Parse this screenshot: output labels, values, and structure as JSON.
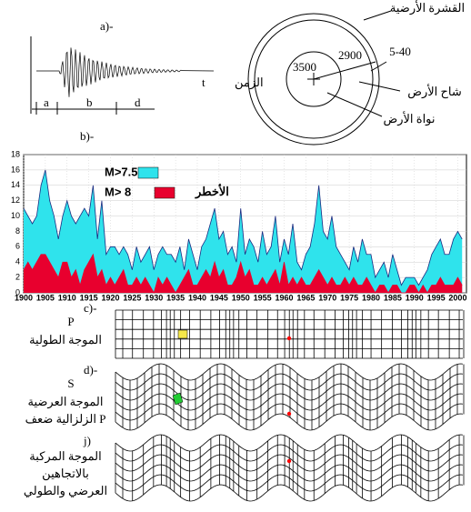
{
  "panel_a": {
    "label": "a)-",
    "time_label": "الزمن",
    "time_symbol": "t",
    "phases": [
      "a",
      "b",
      "d"
    ],
    "earth": {
      "crust": "القشرة الأرضية",
      "mantle": "شاح الأرض",
      "core": "نواة الأرض",
      "depths": [
        "3500",
        "2900",
        "5-40"
      ]
    }
  },
  "chart_data": {
    "type": "area",
    "panel_label": "b)-",
    "x": [
      1900,
      1901,
      1902,
      1903,
      1904,
      1905,
      1906,
      1907,
      1908,
      1909,
      1910,
      1911,
      1912,
      1913,
      1914,
      1915,
      1916,
      1917,
      1918,
      1919,
      1920,
      1921,
      1922,
      1923,
      1924,
      1925,
      1926,
      1927,
      1928,
      1929,
      1930,
      1931,
      1932,
      1933,
      1934,
      1935,
      1936,
      1937,
      1938,
      1939,
      1940,
      1941,
      1942,
      1943,
      1944,
      1945,
      1946,
      1947,
      1948,
      1949,
      1950,
      1951,
      1952,
      1953,
      1954,
      1955,
      1956,
      1957,
      1958,
      1959,
      1960,
      1961,
      1962,
      1963,
      1964,
      1965,
      1966,
      1967,
      1968,
      1969,
      1970,
      1971,
      1972,
      1973,
      1974,
      1975,
      1976,
      1977,
      1978,
      1979,
      1980,
      1981,
      1982,
      1983,
      1984,
      1985,
      1986,
      1987,
      1988,
      1989,
      1990,
      1991,
      1992,
      1993,
      1994,
      1995,
      1996,
      1997,
      1998,
      1999,
      2000,
      2001
    ],
    "xlim": [
      1900,
      2002
    ],
    "xticks": [
      1900,
      1905,
      1910,
      1915,
      1920,
      1925,
      1930,
      1935,
      1940,
      1945,
      1950,
      1955,
      1960,
      1965,
      1970,
      1975,
      1980,
      1985,
      1990,
      1995,
      2000
    ],
    "ylim": [
      0,
      18
    ],
    "yticks": [
      0,
      2,
      4,
      6,
      8,
      10,
      12,
      14,
      16,
      18
    ],
    "grid": true,
    "series": [
      {
        "name": "M>7.5",
        "color": "#2fe3ec",
        "values": [
          11,
          10,
          9,
          10,
          14,
          16,
          12,
          10,
          7,
          10,
          12,
          10,
          9,
          10,
          11,
          10,
          14,
          7,
          12,
          5,
          6,
          6,
          5,
          6,
          5,
          3,
          6,
          4,
          5,
          6,
          3,
          5,
          6,
          5,
          5,
          4,
          6,
          3,
          7,
          5,
          3,
          6,
          7,
          9,
          11,
          7,
          8,
          5,
          6,
          4,
          11,
          5,
          7,
          6,
          4,
          8,
          5,
          6,
          10,
          4,
          7,
          5,
          9,
          4,
          3,
          5,
          6,
          9,
          14,
          8,
          7,
          10,
          6,
          5,
          4,
          3,
          6,
          4,
          7,
          5,
          5,
          2,
          3,
          4,
          2,
          5,
          3,
          1,
          2,
          2,
          2,
          1,
          2,
          3,
          5,
          6,
          7,
          5,
          5,
          7,
          8,
          7
        ]
      },
      {
        "name": "M> 8",
        "color": "#e8002e",
        "values": [
          3,
          4,
          3,
          4,
          5,
          5,
          4,
          3,
          2,
          4,
          4,
          2,
          3,
          1,
          3,
          4,
          5,
          2,
          3,
          1,
          2,
          1,
          2,
          3,
          1,
          1,
          2,
          1,
          2,
          1,
          0,
          2,
          1,
          2,
          1,
          0,
          1,
          2,
          3,
          1,
          1,
          2,
          3,
          2,
          4,
          2,
          3,
          1,
          1,
          2,
          4,
          2,
          3,
          1,
          1,
          2,
          1,
          2,
          3,
          1,
          4,
          1,
          2,
          1,
          2,
          1,
          1,
          2,
          3,
          2,
          1,
          2,
          1,
          1,
          2,
          1,
          2,
          1,
          1,
          2,
          1,
          0,
          1,
          1,
          0,
          1,
          1,
          0,
          0,
          1,
          1,
          0,
          1,
          0,
          1,
          1,
          2,
          1,
          1,
          1,
          2,
          1
        ]
      }
    ],
    "annotation": "الأخطر"
  },
  "waves": [
    {
      "label": "c)-",
      "name": "P",
      "lines": [
        "الموجة الطولية"
      ]
    },
    {
      "label": "d)-",
      "name": "S",
      "lines": [
        "الموجة العرضية",
        "الزلزالية ضعف P"
      ]
    },
    {
      "label": "j)",
      "lines": [
        "الموجة المركبة",
        "بالاتجاهين",
        "العرضي والطولي"
      ]
    }
  ]
}
